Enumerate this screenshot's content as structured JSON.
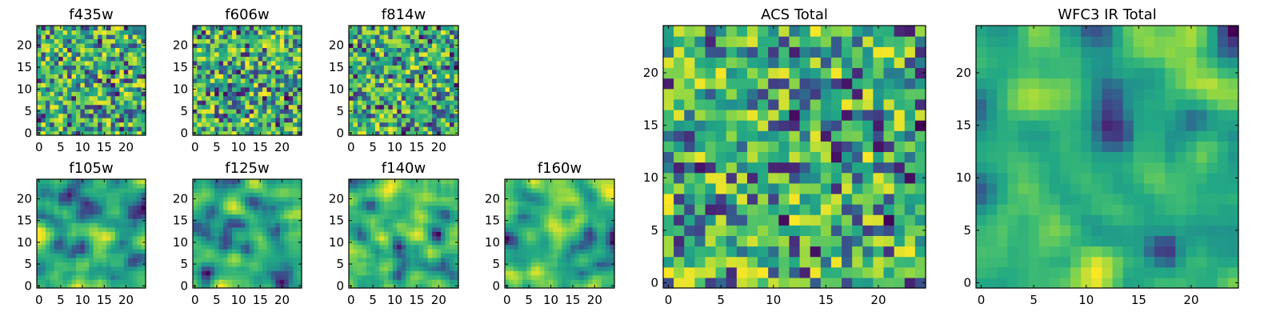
{
  "chart_data": {
    "type": "heatmap",
    "colormap": "viridis",
    "colors": {
      "low": "#440154",
      "mid": "#21908d",
      "high": "#fde725",
      "axes": "#000000",
      "background": "#ffffff"
    },
    "grid": false,
    "panels": [
      {
        "title": "f435w",
        "rows": 25,
        "cols": 25,
        "xlim": [
          0,
          24
        ],
        "ylim": [
          0,
          24
        ],
        "xticks": [
          "0",
          "5",
          "10",
          "15",
          "20"
        ],
        "yticks": [
          "0",
          "5",
          "10",
          "15",
          "20"
        ],
        "field": "noise"
      },
      {
        "title": "f606w",
        "rows": 25,
        "cols": 25,
        "xlim": [
          0,
          24
        ],
        "ylim": [
          0,
          24
        ],
        "xticks": [
          "0",
          "5",
          "10",
          "15",
          "20"
        ],
        "yticks": [
          "0",
          "5",
          "10",
          "15",
          "20"
        ],
        "field": "noise"
      },
      {
        "title": "f814w",
        "rows": 25,
        "cols": 25,
        "xlim": [
          0,
          24
        ],
        "ylim": [
          0,
          24
        ],
        "xticks": [
          "0",
          "5",
          "10",
          "15",
          "20"
        ],
        "yticks": [
          "0",
          "5",
          "10",
          "15",
          "20"
        ],
        "field": "noise"
      },
      {
        "title": "f105w",
        "rows": 25,
        "cols": 25,
        "xlim": [
          0,
          24
        ],
        "ylim": [
          0,
          24
        ],
        "xticks": [
          "0",
          "5",
          "10",
          "15",
          "20"
        ],
        "yticks": [
          "0",
          "5",
          "10",
          "15",
          "20"
        ],
        "field": "smooth"
      },
      {
        "title": "f125w",
        "rows": 25,
        "cols": 25,
        "xlim": [
          0,
          24
        ],
        "ylim": [
          0,
          24
        ],
        "xticks": [
          "0",
          "5",
          "10",
          "15",
          "20"
        ],
        "yticks": [
          "0",
          "5",
          "10",
          "15",
          "20"
        ],
        "field": "smooth"
      },
      {
        "title": "f140w",
        "rows": 25,
        "cols": 25,
        "xlim": [
          0,
          24
        ],
        "ylim": [
          0,
          24
        ],
        "xticks": [
          "0",
          "5",
          "10",
          "15",
          "20"
        ],
        "yticks": [
          "0",
          "5",
          "10",
          "15",
          "20"
        ],
        "field": "smooth"
      },
      {
        "title": "f160w",
        "rows": 25,
        "cols": 25,
        "xlim": [
          0,
          24
        ],
        "ylim": [
          0,
          24
        ],
        "xticks": [
          "0",
          "5",
          "10",
          "15",
          "20"
        ],
        "yticks": [
          "0",
          "5",
          "10",
          "15",
          "20"
        ],
        "field": "smooth"
      },
      {
        "title": "ACS Total",
        "rows": 25,
        "cols": 25,
        "xlim": [
          0,
          24
        ],
        "ylim": [
          0,
          24
        ],
        "xticks": [
          "0",
          "5",
          "10",
          "15",
          "20"
        ],
        "yticks": [
          "0",
          "5",
          "10",
          "15",
          "20"
        ],
        "field": "noise"
      },
      {
        "title": "WFC3 IR Total",
        "rows": 25,
        "cols": 25,
        "xlim": [
          0,
          24
        ],
        "ylim": [
          0,
          24
        ],
        "xticks": [
          "0",
          "5",
          "10",
          "15",
          "20"
        ],
        "yticks": [
          "0",
          "5",
          "10",
          "15",
          "20"
        ],
        "field": "smooth"
      }
    ]
  }
}
